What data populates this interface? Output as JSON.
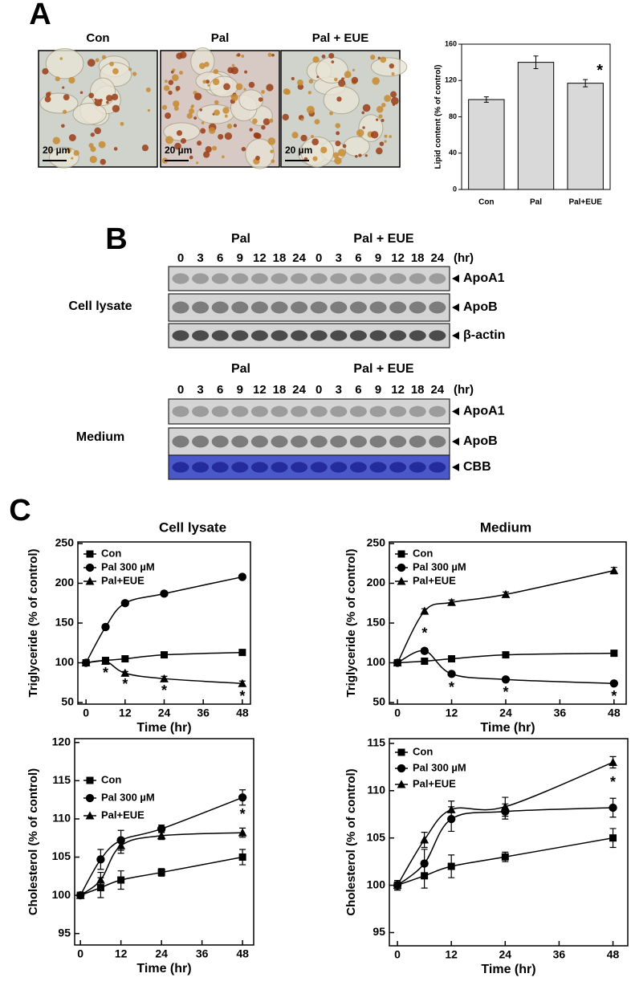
{
  "panel_labels": [
    "A",
    "B",
    "C"
  ],
  "micrographs": [
    {
      "label": "Con",
      "scale": "20 µm"
    },
    {
      "label": "Pal",
      "scale": "20 µm"
    },
    {
      "label": "Pal + EUE",
      "scale": "20 µm"
    }
  ],
  "blots": [
    {
      "group_label": "Cell lysate",
      "headers": [
        "Pal",
        "Pal + EUE"
      ],
      "unit": "(hr)",
      "lanes": [
        "0",
        "3",
        "6",
        "9",
        "12",
        "18",
        "24",
        "0",
        "3",
        "6",
        "9",
        "12",
        "18",
        "24"
      ],
      "rows": [
        "ApoA1",
        "ApoB",
        "β-actin"
      ]
    },
    {
      "group_label": "Medium",
      "headers": [
        "Pal",
        "Pal + EUE"
      ],
      "unit": "(hr)",
      "lanes": [
        "0",
        "3",
        "6",
        "9",
        "12",
        "18",
        "24",
        "0",
        "3",
        "6",
        "9",
        "12",
        "18",
        "24"
      ],
      "rows": [
        "ApoA1",
        "ApoB",
        "CBB"
      ]
    }
  ],
  "chart_data": [
    {
      "type": "bar",
      "ylabel": "Lipid content (% of control)",
      "categories": [
        "Con",
        "Pal",
        "Pal+EUE"
      ],
      "values": [
        99,
        140,
        117
      ],
      "errors": [
        3,
        7,
        4
      ],
      "color": "#d9d9d9",
      "ylim": [
        0,
        160
      ],
      "yticks": [
        0,
        40,
        80,
        120,
        160
      ],
      "annotations": [
        {
          "text": "*",
          "x": "Pal+EUE",
          "y": 130
        }
      ]
    },
    {
      "type": "line",
      "title": "Cell lysate",
      "xlabel": "Time (hr)",
      "ylabel": "Triglyceride (% of control)",
      "x": [
        0,
        6,
        12,
        24,
        48
      ],
      "xlim": [
        -2.5,
        50.5
      ],
      "ylim": [
        48,
        252
      ],
      "xticks": [
        0,
        12,
        24,
        36,
        48
      ],
      "yticks": [
        50,
        100,
        150,
        200,
        250
      ],
      "series": [
        {
          "name": "Con",
          "color": "#000000",
          "marker": "square",
          "values": [
            100,
            103,
            105,
            110,
            113
          ],
          "errors": [
            2,
            2,
            2,
            2,
            2
          ]
        },
        {
          "name": "Pal 300 µM",
          "color": "#000000",
          "marker": "circle",
          "values": [
            100,
            145,
            175,
            187,
            208
          ],
          "errors": [
            2,
            3,
            3,
            3,
            3
          ]
        },
        {
          "name": "Pal+EUE",
          "color": "#000000",
          "marker": "triangle",
          "values": [
            100,
            102,
            87,
            80,
            74
          ],
          "errors": [
            2,
            2,
            2,
            3,
            3
          ]
        }
      ],
      "annotations": [
        {
          "text": "*",
          "x": 6,
          "y": 86
        },
        {
          "text": "*",
          "x": 12,
          "y": 72
        },
        {
          "text": "*",
          "x": 24,
          "y": 64
        },
        {
          "text": "*",
          "x": 48,
          "y": 57
        }
      ]
    },
    {
      "type": "line",
      "title": "Medium",
      "xlabel": "Time (hr)",
      "ylabel": "Triglyceride (% of control)",
      "x": [
        0,
        6,
        12,
        24,
        48
      ],
      "xlim": [
        -1.8,
        50.7
      ],
      "ylim": [
        48,
        252
      ],
      "xticks": [
        0,
        12,
        24,
        36,
        48
      ],
      "yticks": [
        50,
        100,
        150,
        200,
        250
      ],
      "series": [
        {
          "name": "Con",
          "color": "#000000",
          "marker": "square",
          "values": [
            100,
            102,
            105,
            110,
            112
          ],
          "errors": [
            2,
            2,
            2,
            2,
            2
          ]
        },
        {
          "name": "Pal 300 µM",
          "color": "#000000",
          "marker": "circle",
          "values": [
            100,
            115,
            86,
            79,
            74
          ],
          "errors": [
            2,
            3,
            2,
            2,
            2
          ]
        },
        {
          "name": "Pal+EUE",
          "color": "#000000",
          "marker": "triangle",
          "values": [
            100,
            165,
            176,
            186,
            216
          ],
          "errors": [
            2,
            3,
            3,
            3,
            4
          ]
        }
      ],
      "annotations": [
        {
          "text": "*",
          "x": 6,
          "y": 136
        },
        {
          "text": "*",
          "x": 12,
          "y": 68
        },
        {
          "text": "*",
          "x": 24,
          "y": 62
        },
        {
          "text": "*",
          "x": 48,
          "y": 57
        }
      ]
    },
    {
      "type": "line",
      "xlabel": "Time (hr)",
      "ylabel": "Cholesterol (% of control)",
      "x": [
        0,
        6,
        12,
        24,
        48
      ],
      "xlim": [
        -1.7,
        51.3
      ],
      "ylim": [
        93.5,
        120.5
      ],
      "xticks": [
        0,
        12,
        24,
        36,
        48
      ],
      "yticks": [
        95,
        100,
        105,
        110,
        115,
        120
      ],
      "series": [
        {
          "name": "Con",
          "color": "#000000",
          "marker": "square",
          "values": [
            100,
            101,
            102,
            103,
            105
          ],
          "errors": [
            0.3,
            1.3,
            1.2,
            0.5,
            1
          ]
        },
        {
          "name": "Pal 300 µM",
          "color": "#000000",
          "marker": "circle",
          "values": [
            100,
            104.7,
            107.2,
            108.7,
            112.8
          ],
          "errors": [
            0.3,
            1.3,
            1.3,
            0.5,
            1
          ]
        },
        {
          "name": "Pal+EUE",
          "color": "#000000",
          "marker": "triangle",
          "values": [
            100,
            102,
            106.5,
            107.8,
            108.2
          ],
          "errors": [
            0.3,
            1,
            1,
            0.5,
            0.6
          ]
        }
      ],
      "annotations": [
        {
          "text": "*",
          "x": 48,
          "y": 110.5
        }
      ]
    },
    {
      "type": "line",
      "xlabel": "Time (hr)",
      "ylabel": "Cholesterol (% of control)",
      "x": [
        0,
        6,
        12,
        24,
        48
      ],
      "xlim": [
        -1.8,
        51.3
      ],
      "ylim": [
        93.6,
        115.5
      ],
      "xticks": [
        0,
        12,
        24,
        36,
        48
      ],
      "yticks": [
        95,
        100,
        105,
        110,
        115
      ],
      "series": [
        {
          "name": "Con",
          "color": "#000000",
          "marker": "square",
          "values": [
            100,
            101,
            102,
            103,
            105
          ],
          "errors": [
            0.5,
            1.3,
            1.2,
            0.5,
            1
          ]
        },
        {
          "name": "Pal 300 µM",
          "color": "#000000",
          "marker": "circle",
          "values": [
            100,
            102.3,
            107,
            107.8,
            108.2
          ],
          "errors": [
            0.5,
            1.5,
            1.3,
            0.8,
            1
          ]
        },
        {
          "name": "Pal+EUE",
          "color": "#000000",
          "marker": "triangle",
          "values": [
            100,
            104.8,
            108,
            108.3,
            113
          ],
          "errors": [
            0.5,
            0.8,
            0.9,
            1,
            0.6
          ]
        }
      ],
      "annotations": [
        {
          "text": "*",
          "x": 48,
          "y": 110.8
        }
      ]
    }
  ]
}
